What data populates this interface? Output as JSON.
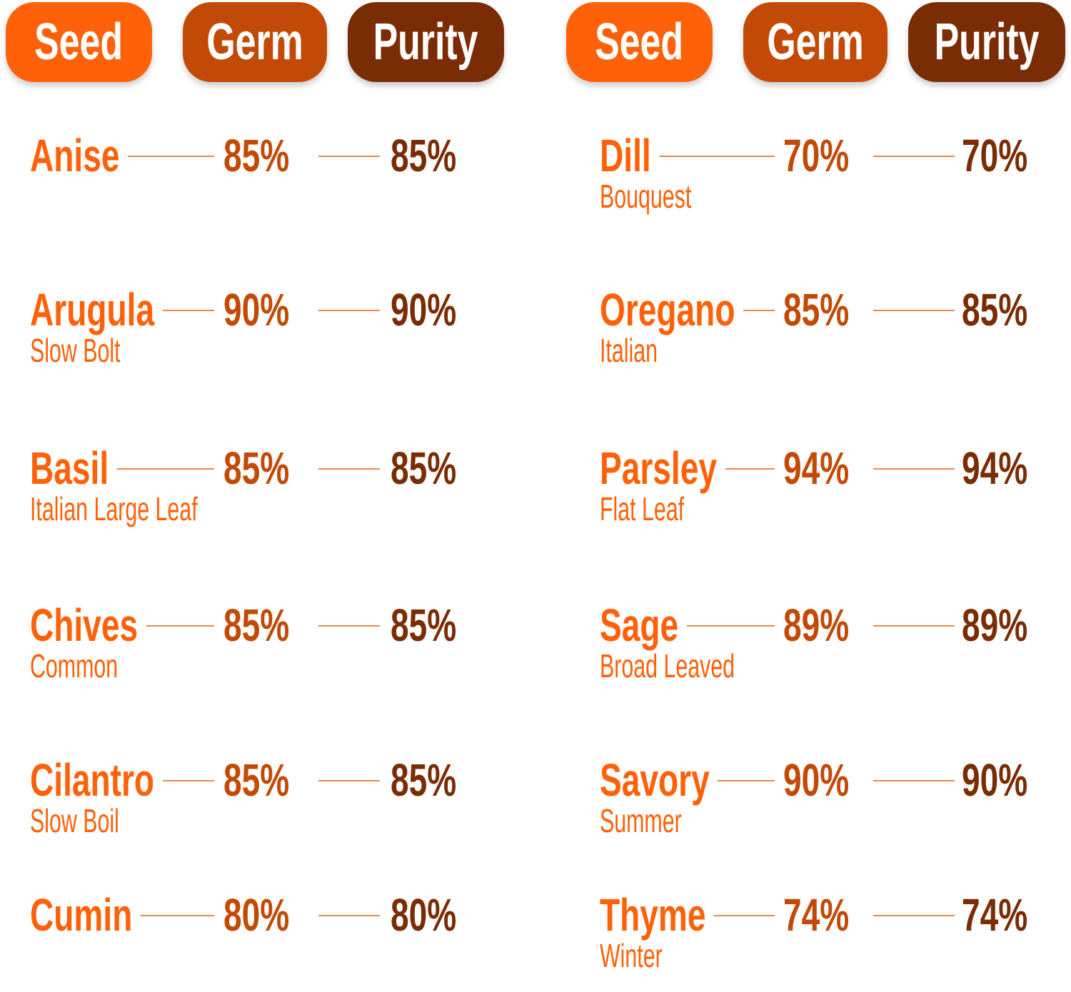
{
  "colors": {
    "seed": "#ff6108",
    "germ": "#c24a06",
    "purity": "#7a2c05"
  },
  "headers": {
    "seed": "Seed",
    "germ": "Germ",
    "purity": "Purity"
  },
  "left": [
    {
      "name": "Anise",
      "variety": "",
      "germ": "85%",
      "purity": "85%"
    },
    {
      "name": "Arugula",
      "variety": "Slow Bolt",
      "germ": "90%",
      "purity": "90%"
    },
    {
      "name": "Basil",
      "variety": "Italian Large Leaf",
      "germ": "85%",
      "purity": "85%"
    },
    {
      "name": "Chives",
      "variety": "Common",
      "germ": "85%",
      "purity": "85%"
    },
    {
      "name": "Cilantro",
      "variety": "Slow Boil",
      "germ": "85%",
      "purity": "85%"
    },
    {
      "name": "Cumin",
      "variety": "",
      "germ": "80%",
      "purity": "80%"
    }
  ],
  "right": [
    {
      "name": "Dill",
      "variety": "Bouquest",
      "germ": "70%",
      "purity": "70%"
    },
    {
      "name": "Oregano",
      "variety": "Italian",
      "germ": "85%",
      "purity": "85%"
    },
    {
      "name": "Parsley",
      "variety": "Flat Leaf",
      "germ": "94%",
      "purity": "94%"
    },
    {
      "name": "Sage",
      "variety": "Broad Leaved",
      "germ": "89%",
      "purity": "89%"
    },
    {
      "name": "Savory",
      "variety": "Summer",
      "germ": "90%",
      "purity": "90%"
    },
    {
      "name": "Thyme",
      "variety": "Winter",
      "germ": "74%",
      "purity": "74%"
    }
  ]
}
